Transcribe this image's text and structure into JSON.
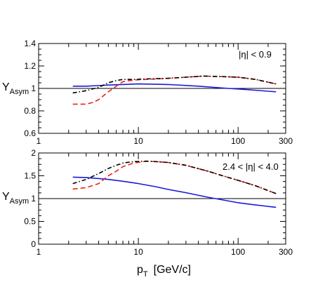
{
  "chart_data": [
    {
      "type": "line",
      "ylabel": "Y",
      "ylabel_sub": "Asym",
      "annotation": "|η| < 0.9",
      "xscale": "log",
      "xlim": [
        1,
        300
      ],
      "ylim": [
        0.6,
        1.4
      ],
      "yticks": [
        "0.6",
        "0.8",
        "1",
        "1.2",
        "1.4"
      ],
      "xticks": [
        "1",
        "10",
        "100",
        "300"
      ],
      "reference_line": 1,
      "series": [
        {
          "style": "solid",
          "color": "#1a1adc",
          "x": [
            2.2,
            3,
            4,
            5,
            7,
            10,
            20,
            40,
            80,
            120,
            200,
            240
          ],
          "y": [
            1.02,
            1.02,
            1.025,
            1.03,
            1.035,
            1.04,
            1.035,
            1.02,
            1.0,
            0.99,
            0.975,
            0.97
          ]
        },
        {
          "style": "dash",
          "color": "#e8231e",
          "x": [
            2.2,
            3,
            3.5,
            4,
            5,
            6,
            7,
            9,
            12,
            20,
            30,
            45,
            70,
            100,
            150,
            240
          ],
          "y": [
            0.86,
            0.86,
            0.875,
            0.9,
            0.97,
            1.02,
            1.06,
            1.075,
            1.08,
            1.09,
            1.1,
            1.11,
            1.105,
            1.1,
            1.08,
            1.04
          ]
        },
        {
          "style": "dashdot",
          "color": "#000000",
          "x": [
            2.2,
            3,
            4,
            5,
            6,
            7,
            9,
            12,
            20,
            30,
            45,
            70,
            100,
            150,
            240
          ],
          "y": [
            0.96,
            0.98,
            1.01,
            1.05,
            1.07,
            1.08,
            1.08,
            1.085,
            1.09,
            1.1,
            1.11,
            1.105,
            1.1,
            1.08,
            1.04
          ]
        }
      ]
    },
    {
      "type": "line",
      "ylabel": "Y",
      "ylabel_sub": "Asym",
      "annotation": "2.4 < |η| < 4.0",
      "xlabel": "p",
      "xlabel_sub": "T",
      "xlabel_unit": "[GeV/c]",
      "xscale": "log",
      "xlim": [
        1,
        300
      ],
      "ylim": [
        0,
        2
      ],
      "yticks": [
        "0",
        "0.5",
        "1",
        "1.5",
        "2"
      ],
      "xticks": [
        "1",
        "10",
        "100",
        "300"
      ],
      "reference_line": 1,
      "series": [
        {
          "style": "solid",
          "color": "#1a1adc",
          "x": [
            2.2,
            3,
            4,
            5,
            7,
            10,
            15,
            20,
            30,
            50,
            70,
            100,
            150,
            240
          ],
          "y": [
            1.47,
            1.46,
            1.44,
            1.42,
            1.38,
            1.33,
            1.26,
            1.2,
            1.13,
            1.03,
            0.97,
            0.91,
            0.86,
            0.81
          ]
        },
        {
          "style": "dash",
          "color": "#e8231e",
          "x": [
            2.2,
            3,
            4,
            5,
            6,
            7,
            9,
            12,
            15,
            20,
            30,
            50,
            70,
            100,
            150,
            240
          ],
          "y": [
            1.21,
            1.24,
            1.33,
            1.5,
            1.6,
            1.7,
            1.78,
            1.82,
            1.81,
            1.79,
            1.73,
            1.6,
            1.5,
            1.4,
            1.28,
            1.11
          ]
        },
        {
          "style": "dashdot",
          "color": "#000000",
          "x": [
            2.2,
            3,
            4,
            5,
            6,
            7,
            9,
            12,
            15,
            20,
            30,
            50,
            70,
            100,
            150,
            240
          ],
          "y": [
            1.33,
            1.42,
            1.55,
            1.66,
            1.73,
            1.78,
            1.81,
            1.82,
            1.81,
            1.79,
            1.73,
            1.6,
            1.5,
            1.4,
            1.28,
            1.11
          ]
        }
      ]
    }
  ]
}
